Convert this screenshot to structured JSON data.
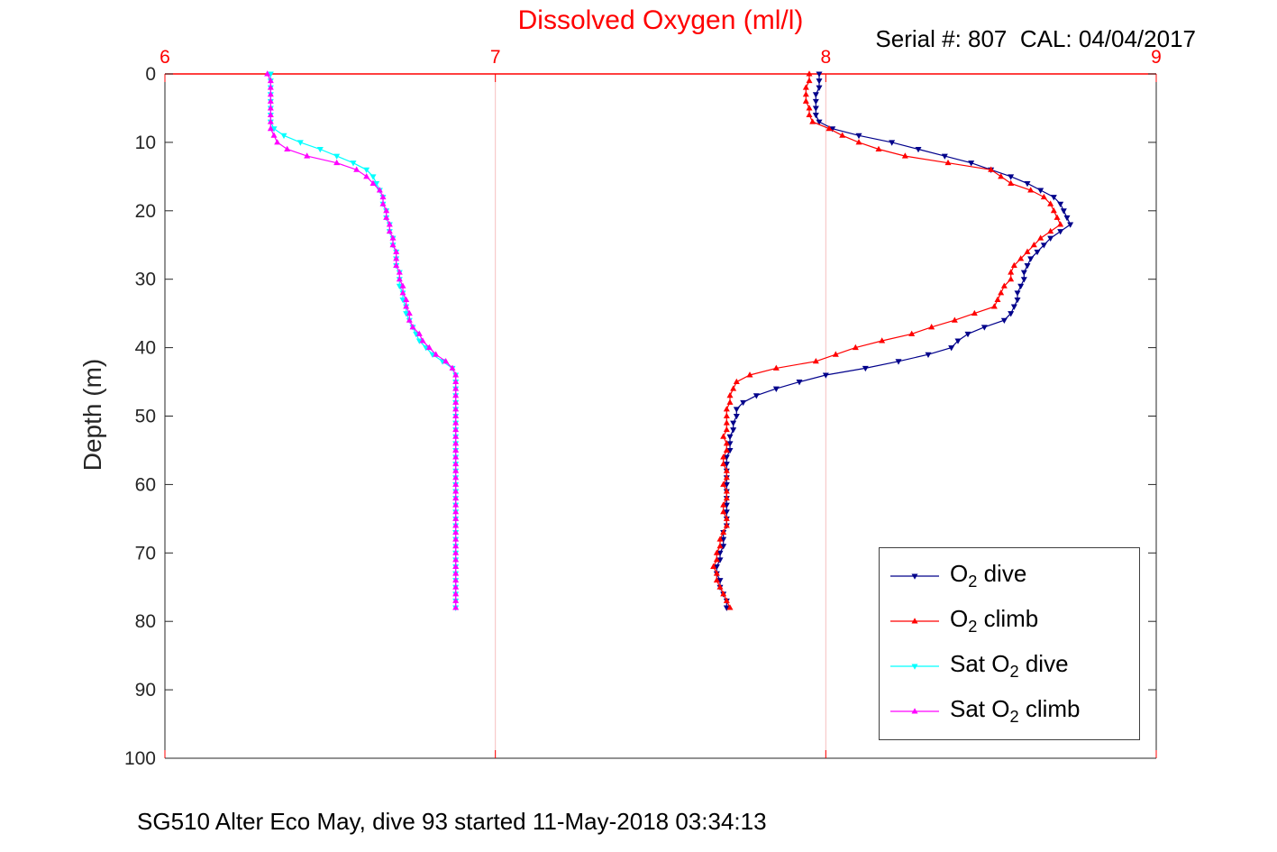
{
  "title": {
    "text": "Dissolved Oxygen (ml/l)",
    "color": "#ff0000"
  },
  "header": {
    "serial_cal": "Serial #: 807  CAL: 04/04/2017"
  },
  "footer": {
    "caption": "SG510 Alter Eco May, dive 93 started 11-May-2018 03:34:13"
  },
  "chart_data": {
    "type": "line",
    "title": "Dissolved Oxygen (ml/l)",
    "xlabel": "",
    "ylabel": "Depth (m)",
    "xlim": [
      6,
      9
    ],
    "ylim": [
      0,
      100
    ],
    "xticks": [
      6,
      7,
      8,
      9
    ],
    "yticks": [
      0,
      10,
      20,
      30,
      40,
      50,
      60,
      70,
      80,
      90,
      100
    ],
    "x_axis_location": "top",
    "y_axis_direction": "down",
    "x_color": "#ff0000",
    "axis_color": "#262626",
    "grid_color": "#f6bfbf",
    "legend_position": "bottom-right",
    "depths": [
      0,
      1,
      2,
      3,
      4,
      5,
      6,
      7,
      8,
      9,
      10,
      11,
      12,
      13,
      14,
      15,
      16,
      17,
      18,
      19,
      20,
      21,
      22,
      23,
      24,
      25,
      26,
      27,
      28,
      29,
      30,
      31,
      32,
      33,
      34,
      35,
      36,
      37,
      38,
      39,
      40,
      41,
      42,
      43,
      44,
      45,
      46,
      47,
      48,
      49,
      50,
      51,
      52,
      53,
      54,
      55,
      56,
      57,
      58,
      59,
      60,
      61,
      62,
      63,
      64,
      65,
      66,
      67,
      68,
      69,
      70,
      71,
      72,
      73,
      74,
      75,
      76,
      77,
      78
    ],
    "series": [
      {
        "id": "o2-dive",
        "name": "O2 dive",
        "label_base": "O",
        "label_sub": "2",
        "label_rest": " dive",
        "color": "#00008b",
        "marker": "triangle-down",
        "values": [
          7.98,
          7.98,
          7.98,
          7.97,
          7.97,
          7.97,
          7.97,
          7.98,
          8.02,
          8.1,
          8.2,
          8.28,
          8.36,
          8.44,
          8.5,
          8.56,
          8.61,
          8.65,
          8.69,
          8.71,
          8.72,
          8.73,
          8.74,
          8.71,
          8.68,
          8.66,
          8.64,
          8.62,
          8.61,
          8.6,
          8.6,
          8.59,
          8.58,
          8.58,
          8.57,
          8.56,
          8.54,
          8.48,
          8.43,
          8.4,
          8.38,
          8.31,
          8.22,
          8.12,
          8.0,
          7.92,
          7.85,
          7.79,
          7.75,
          7.73,
          7.73,
          7.72,
          7.72,
          7.71,
          7.71,
          7.71,
          7.7,
          7.7,
          7.7,
          7.7,
          7.7,
          7.7,
          7.7,
          7.7,
          7.7,
          7.7,
          7.7,
          7.69,
          7.69,
          7.69,
          7.68,
          7.68,
          7.67,
          7.67,
          7.68,
          7.68,
          7.69,
          7.7,
          7.7
        ]
      },
      {
        "id": "o2-climb",
        "name": "O2 climb",
        "label_base": "O",
        "label_sub": "2",
        "label_rest": " climb",
        "color": "#ff0000",
        "marker": "triangle-up",
        "values": [
          7.95,
          7.95,
          7.94,
          7.94,
          7.94,
          7.95,
          7.95,
          7.96,
          8.01,
          8.05,
          8.1,
          8.16,
          8.24,
          8.37,
          8.5,
          8.53,
          8.56,
          8.62,
          8.66,
          8.68,
          8.69,
          8.7,
          8.71,
          8.68,
          8.65,
          8.63,
          8.61,
          8.59,
          8.57,
          8.56,
          8.56,
          8.54,
          8.53,
          8.52,
          8.51,
          8.45,
          8.39,
          8.32,
          8.26,
          8.17,
          8.09,
          8.03,
          7.97,
          7.85,
          7.77,
          7.73,
          7.72,
          7.71,
          7.71,
          7.7,
          7.7,
          7.7,
          7.7,
          7.69,
          7.7,
          7.7,
          7.69,
          7.69,
          7.7,
          7.7,
          7.69,
          7.7,
          7.7,
          7.69,
          7.69,
          7.7,
          7.7,
          7.69,
          7.68,
          7.68,
          7.67,
          7.67,
          7.66,
          7.67,
          7.67,
          7.68,
          7.69,
          7.7,
          7.71
        ]
      },
      {
        "id": "sat-o2-dive",
        "name": "Sat O2 dive",
        "label_base": "Sat O",
        "label_sub": "2",
        "label_rest": " dive",
        "color": "#00ffff",
        "marker": "triangle-down",
        "values": [
          6.32,
          6.32,
          6.32,
          6.32,
          6.32,
          6.32,
          6.32,
          6.32,
          6.33,
          6.36,
          6.41,
          6.47,
          6.52,
          6.57,
          6.61,
          6.63,
          6.64,
          6.65,
          6.66,
          6.66,
          6.67,
          6.67,
          6.68,
          6.68,
          6.69,
          6.69,
          6.7,
          6.7,
          6.7,
          6.71,
          6.71,
          6.71,
          6.72,
          6.72,
          6.73,
          6.73,
          6.74,
          6.75,
          6.76,
          6.77,
          6.79,
          6.81,
          6.84,
          6.87,
          6.88,
          6.88,
          6.88,
          6.88,
          6.88,
          6.88,
          6.88,
          6.88,
          6.88,
          6.88,
          6.88,
          6.88,
          6.88,
          6.88,
          6.88,
          6.88,
          6.88,
          6.88,
          6.88,
          6.88,
          6.88,
          6.88,
          6.88,
          6.88,
          6.88,
          6.88,
          6.88,
          6.88,
          6.88,
          6.88,
          6.88,
          6.88,
          6.88,
          6.88,
          6.88
        ]
      },
      {
        "id": "sat-o2-climb",
        "name": "Sat O2 climb",
        "label_base": "Sat O",
        "label_sub": "2",
        "label_rest": " climb",
        "color": "#ff00ff",
        "marker": "triangle-up",
        "values": [
          6.31,
          6.32,
          6.32,
          6.32,
          6.32,
          6.32,
          6.32,
          6.32,
          6.32,
          6.33,
          6.34,
          6.37,
          6.43,
          6.52,
          6.58,
          6.61,
          6.63,
          6.65,
          6.66,
          6.66,
          6.67,
          6.67,
          6.68,
          6.68,
          6.69,
          6.69,
          6.7,
          6.7,
          6.7,
          6.71,
          6.71,
          6.72,
          6.72,
          6.73,
          6.73,
          6.74,
          6.74,
          6.75,
          6.77,
          6.78,
          6.8,
          6.82,
          6.85,
          6.87,
          6.88,
          6.88,
          6.88,
          6.88,
          6.88,
          6.88,
          6.88,
          6.88,
          6.88,
          6.88,
          6.88,
          6.88,
          6.88,
          6.88,
          6.88,
          6.88,
          6.88,
          6.88,
          6.88,
          6.88,
          6.88,
          6.88,
          6.88,
          6.88,
          6.88,
          6.88,
          6.88,
          6.88,
          6.88,
          6.88,
          6.88,
          6.88,
          6.88,
          6.88,
          6.88
        ]
      }
    ]
  }
}
